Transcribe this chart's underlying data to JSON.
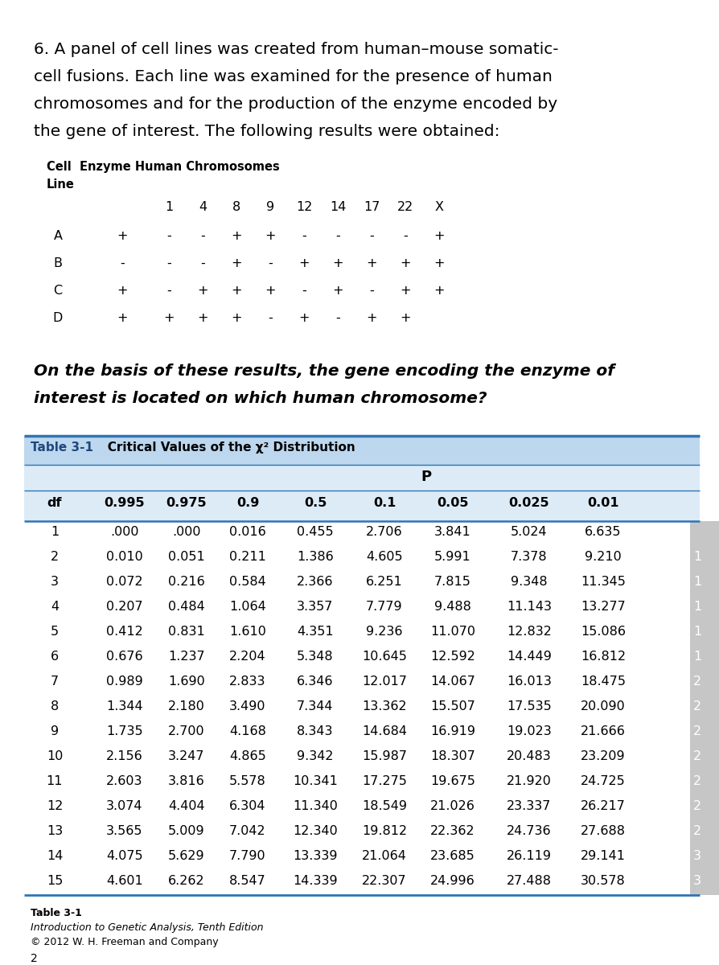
{
  "question_text": [
    "6. A panel of cell lines was created from human–mouse somatic-",
    "cell fusions. Each line was examined for the presence of human",
    "chromosomes and for the production of the enzyme encoded by",
    "the gene of interest. The following results were obtained:"
  ],
  "cell_header1": "Cell  Enzyme Human Chromosomes",
  "cell_header2": "Line",
  "chrom_nums": [
    "1",
    "4",
    "8",
    "9",
    "12",
    "14",
    "17",
    "22",
    "X"
  ],
  "cell_lines_data": [
    [
      "A",
      "+",
      [
        "-",
        "-",
        "+",
        "+",
        "-",
        "-",
        "-",
        "-",
        "+"
      ]
    ],
    [
      "B",
      "-",
      [
        "-",
        "-",
        "+",
        "-",
        "+",
        "+",
        "+",
        "+",
        "+"
      ]
    ],
    [
      "C",
      "+",
      [
        "-",
        "+",
        "+",
        "+",
        "-",
        "+",
        "-",
        "+",
        "+"
      ]
    ],
    [
      "D",
      "+",
      [
        "+",
        "+",
        "+",
        "-",
        "+",
        "-",
        "+",
        "+",
        ""
      ]
    ]
  ],
  "italic_question": [
    "On the basis of these results, the gene encoding the enzyme of",
    "interest is located on which human chromosome?"
  ],
  "table_title": "Table 3-1",
  "table_subtitle": "Critical Values of the χ² Distribution",
  "table_p_label": "P",
  "table_headers": [
    "df",
    "0.995",
    "0.975",
    "0.9",
    "0.5",
    "0.1",
    "0.05",
    "0.025",
    "0.01"
  ],
  "table_data": [
    [
      "1",
      ".000",
      ".000",
      "0.016",
      "0.455",
      "2.706",
      "3.841",
      "5.024",
      "6.635"
    ],
    [
      "2",
      "0.010",
      "0.051",
      "0.211",
      "1.386",
      "4.605",
      "5.991",
      "7.378",
      "9.210"
    ],
    [
      "3",
      "0.072",
      "0.216",
      "0.584",
      "2.366",
      "6.251",
      "7.815",
      "9.348",
      "11.345"
    ],
    [
      "4",
      "0.207",
      "0.484",
      "1.064",
      "3.357",
      "7.779",
      "9.488",
      "11.143",
      "13.277"
    ],
    [
      "5",
      "0.412",
      "0.831",
      "1.610",
      "4.351",
      "9.236",
      "11.070",
      "12.832",
      "15.086"
    ],
    [
      "6",
      "0.676",
      "1.237",
      "2.204",
      "5.348",
      "10.645",
      "12.592",
      "14.449",
      "16.812"
    ],
    [
      "7",
      "0.989",
      "1.690",
      "2.833",
      "6.346",
      "12.017",
      "14.067",
      "16.013",
      "18.475"
    ],
    [
      "8",
      "1.344",
      "2.180",
      "3.490",
      "7.344",
      "13.362",
      "15.507",
      "17.535",
      "20.090"
    ],
    [
      "9",
      "1.735",
      "2.700",
      "4.168",
      "8.343",
      "14.684",
      "16.919",
      "19.023",
      "21.666"
    ],
    [
      "10",
      "2.156",
      "3.247",
      "4.865",
      "9.342",
      "15.987",
      "18.307",
      "20.483",
      "23.209"
    ],
    [
      "11",
      "2.603",
      "3.816",
      "5.578",
      "10.341",
      "17.275",
      "19.675",
      "21.920",
      "24.725"
    ],
    [
      "12",
      "3.074",
      "4.404",
      "6.304",
      "11.340",
      "18.549",
      "21.026",
      "23.337",
      "26.217"
    ],
    [
      "13",
      "3.565",
      "5.009",
      "7.042",
      "12.340",
      "19.812",
      "22.362",
      "24.736",
      "27.688"
    ],
    [
      "14",
      "4.075",
      "5.629",
      "7.790",
      "13.339",
      "21.064",
      "23.685",
      "26.119",
      "29.141"
    ],
    [
      "15",
      "4.601",
      "6.262",
      "8.547",
      "14.339",
      "22.307",
      "24.996",
      "27.488",
      "30.578"
    ]
  ],
  "footer_line1": "Table 3-1",
  "footer_line2": "Introduction to Genetic Analysis, Tenth Edition",
  "footer_line3": "© 2012 W. H. Freeman and Company",
  "footer_line4": "2",
  "bg_color": "#ffffff",
  "table_header_bg": "#bdd7ee",
  "table_subheader_bg": "#ddebf7",
  "table_border_color": "#2e75b6",
  "text_color": "#000000",
  "title_color": "#1f497d"
}
